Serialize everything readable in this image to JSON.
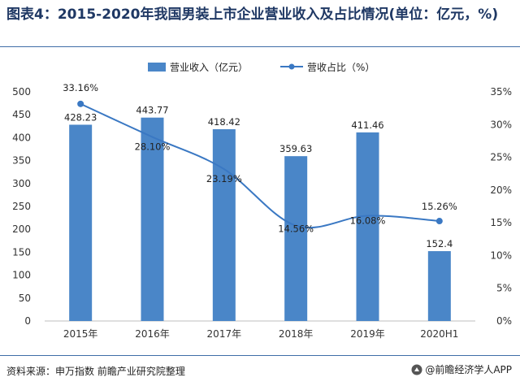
{
  "title": "图表4：2015-2020年我国男装上市企业营业收入及占比情况(单位：亿元，%)",
  "footer": {
    "source": "资料来源：申万指数   前瞻产业研究院整理",
    "brand": "@前瞻经济学人APP"
  },
  "colors": {
    "bar": "#4a86c8",
    "line": "#3a78c3",
    "title": "#1f3864"
  },
  "chart_data": {
    "type": "bar",
    "categories": [
      "2015年",
      "2016年",
      "2017年",
      "2018年",
      "2019年",
      "2020H1"
    ],
    "series": [
      {
        "name": "营业收入（亿元）",
        "type": "bar",
        "axis": "left",
        "values": [
          428.23,
          443.77,
          418.42,
          359.63,
          411.46,
          152.4
        ],
        "labels": [
          "428.23",
          "443.77",
          "418.42",
          "359.63",
          "411.46",
          "152.4"
        ]
      },
      {
        "name": "营收占比（%）",
        "type": "line",
        "axis": "right",
        "values": [
          33.16,
          28.1,
          23.19,
          14.56,
          16.08,
          15.26
        ],
        "labels": [
          "33.16%",
          "28.10%",
          "23.19%",
          "14.56%",
          "16.08%",
          "15.26%"
        ]
      }
    ],
    "y_left": {
      "min": 0,
      "max": 500,
      "ticks": [
        "0",
        "50",
        "100",
        "150",
        "200",
        "250",
        "300",
        "350",
        "400",
        "450",
        "500"
      ]
    },
    "y_right": {
      "min": 0,
      "max": 35,
      "ticks": [
        "0%",
        "5%",
        "10%",
        "15%",
        "20%",
        "25%",
        "30%",
        "35%"
      ]
    },
    "legend_position": "top",
    "grid": false
  }
}
